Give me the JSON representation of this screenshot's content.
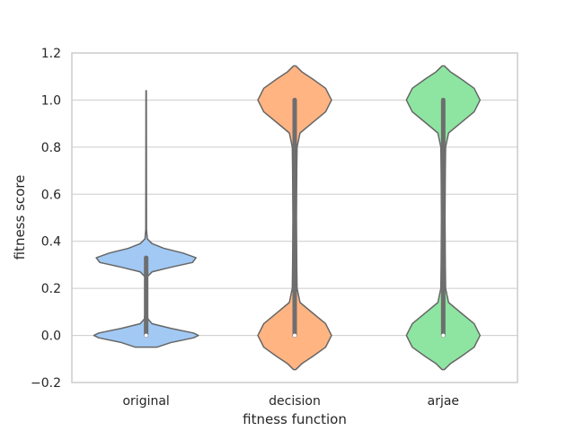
{
  "chart_data": {
    "type": "violin",
    "xlabel": "fitness function",
    "ylabel": "fitness score",
    "ylim": [
      -0.2,
      1.2
    ],
    "yticks": [
      -0.2,
      0.0,
      0.2,
      0.4,
      0.6,
      0.8,
      1.0,
      1.2
    ],
    "ytick_labels": [
      "−0.2",
      "0.0",
      "0.2",
      "0.4",
      "0.6",
      "0.8",
      "1.0",
      "1.2"
    ],
    "grid": "horizontal",
    "categories": [
      "original",
      "decision",
      "arjae"
    ],
    "colors": [
      "#a1c9f4",
      "#ffb482",
      "#8de5a1"
    ],
    "outline_color": "#666666",
    "box_color": "#6e6e6e",
    "violins": [
      {
        "category": "original",
        "min": -0.05,
        "max": 1.04,
        "q1": 0.0,
        "median": 0.0,
        "q3": 0.33,
        "whisker_low": 0.0,
        "whisker_high": 0.33,
        "density": [
          [
            -0.05,
            0.18
          ],
          [
            -0.03,
            0.42
          ],
          [
            -0.01,
            0.8
          ],
          [
            0.0,
            0.88
          ],
          [
            0.01,
            0.8
          ],
          [
            0.03,
            0.42
          ],
          [
            0.05,
            0.1
          ],
          [
            0.07,
            0.03
          ],
          [
            0.1,
            0.015
          ],
          [
            0.15,
            0.01
          ],
          [
            0.2,
            0.01
          ],
          [
            0.25,
            0.02
          ],
          [
            0.27,
            0.1
          ],
          [
            0.29,
            0.42
          ],
          [
            0.31,
            0.78
          ],
          [
            0.33,
            0.84
          ],
          [
            0.35,
            0.62
          ],
          [
            0.37,
            0.3
          ],
          [
            0.39,
            0.1
          ],
          [
            0.41,
            0.02
          ],
          [
            0.45,
            0.006
          ],
          [
            0.6,
            0.005
          ],
          [
            0.8,
            0.004
          ],
          [
            1.04,
            0.003
          ]
        ]
      },
      {
        "category": "decision",
        "min": -0.145,
        "max": 1.145,
        "q1": 0.0,
        "median": 0.0,
        "q3": 1.0,
        "whisker_low": 0.0,
        "whisker_high": 1.0,
        "density": [
          [
            -0.145,
            0.02
          ],
          [
            -0.12,
            0.12
          ],
          [
            -0.09,
            0.3
          ],
          [
            -0.05,
            0.52
          ],
          [
            0.0,
            0.62
          ],
          [
            0.05,
            0.52
          ],
          [
            0.1,
            0.28
          ],
          [
            0.14,
            0.09
          ],
          [
            0.2,
            0.04
          ],
          [
            0.3,
            0.035
          ],
          [
            0.5,
            0.03
          ],
          [
            0.7,
            0.035
          ],
          [
            0.8,
            0.04
          ],
          [
            0.86,
            0.09
          ],
          [
            0.9,
            0.28
          ],
          [
            0.95,
            0.52
          ],
          [
            1.0,
            0.62
          ],
          [
            1.05,
            0.52
          ],
          [
            1.09,
            0.3
          ],
          [
            1.12,
            0.12
          ],
          [
            1.145,
            0.02
          ]
        ]
      },
      {
        "category": "arjae",
        "min": -0.145,
        "max": 1.145,
        "q1": 0.0,
        "median": 0.0,
        "q3": 1.0,
        "whisker_low": 0.0,
        "whisker_high": 1.0,
        "density": [
          [
            -0.145,
            0.02
          ],
          [
            -0.12,
            0.12
          ],
          [
            -0.09,
            0.3
          ],
          [
            -0.05,
            0.52
          ],
          [
            0.0,
            0.62
          ],
          [
            0.05,
            0.52
          ],
          [
            0.1,
            0.28
          ],
          [
            0.14,
            0.09
          ],
          [
            0.2,
            0.04
          ],
          [
            0.3,
            0.035
          ],
          [
            0.5,
            0.03
          ],
          [
            0.7,
            0.035
          ],
          [
            0.8,
            0.04
          ],
          [
            0.86,
            0.09
          ],
          [
            0.9,
            0.28
          ],
          [
            0.95,
            0.52
          ],
          [
            1.0,
            0.62
          ],
          [
            1.05,
            0.52
          ],
          [
            1.09,
            0.3
          ],
          [
            1.12,
            0.12
          ],
          [
            1.145,
            0.02
          ]
        ]
      }
    ]
  }
}
